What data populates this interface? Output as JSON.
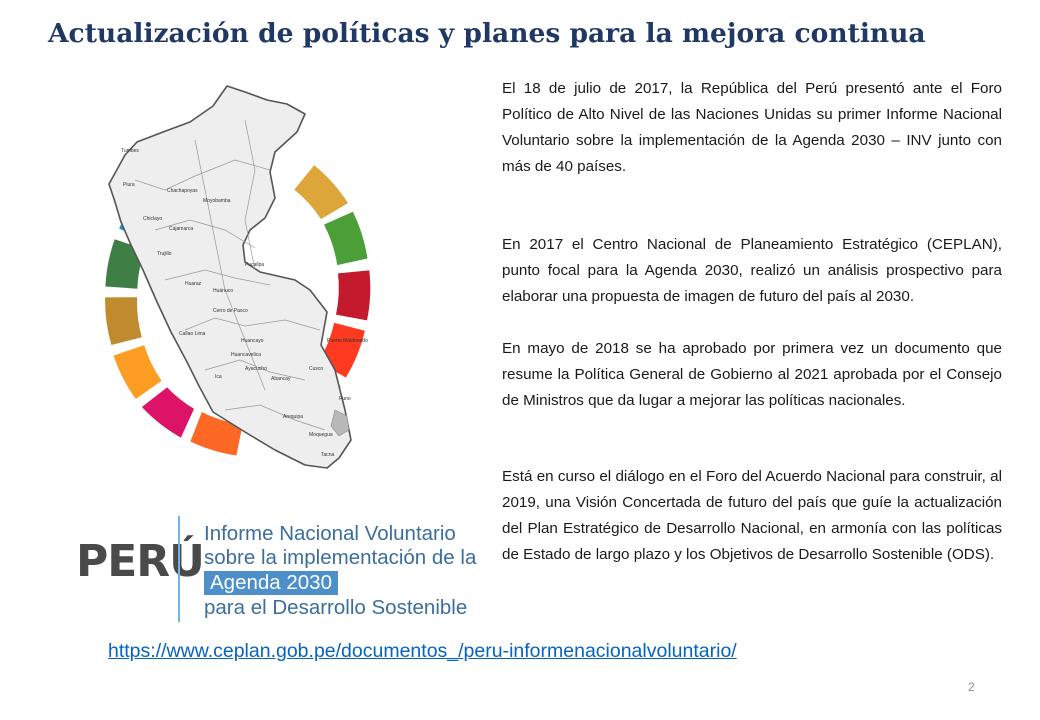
{
  "slide": {
    "title": "Actualización de políticas y planes para la mejora continua",
    "page_number": "2"
  },
  "paragraphs": [
    "El 18 de julio de 2017, la República del Perú presentó ante el Foro Político de Alto Nivel de las Naciones Unidas su primer Informe Nacional Voluntario sobre la implementación de la Agenda 2030 – INV junto con más de 40 países.",
    "En 2017 el Centro Nacional de Planeamiento Estratégico (CEPLAN), punto focal para la Agenda 2030, realizó un análisis prospectivo para elaborar una propuesta de imagen de futuro del país al 2030.",
    "En mayo de 2018 se ha aprobado por primera vez un documento que resume la Política General de Gobierno al 2021 aprobada por el Consejo de Ministros que da lugar a mejorar las políticas nacionales.",
    "Está en curso el diálogo en el Foro del Acuerdo Nacional para construir, al 2019, una Visión Concertada de futuro del país que guíe la actualización del Plan Estratégico de Desarrollo Nacional, en armonía con las políticas de Estado de largo plazo y los Objetivos de Desarrollo Sostenible (ODS)."
  ],
  "map_cities": [
    "Tumbes",
    "Piura",
    "Chachapoyas",
    "Moyobamba",
    "Chiclayo",
    "Cajamarca",
    "Trujillo",
    "Huaraz",
    "Pucallpa",
    "Huánuco",
    "Cerro de Pasco",
    "Callao Lima",
    "Huancayo",
    "Huancavelica",
    "Ayacucho",
    "Ica",
    "Abancay",
    "Cusco",
    "Puerto Maldonado",
    "Arequipa",
    "Moquegua",
    "Tacna",
    "Puno"
  ],
  "brand": {
    "country": "PERÚ",
    "lines": [
      "Informe Nacional Voluntario",
      "sobre la implementación de la",
      "Agenda 2030",
      "para el Desarrollo Sostenible"
    ]
  },
  "colors": {
    "title": "#1f3864",
    "link": "#0563c1",
    "sdg_ring": [
      "#e5243b",
      "#dda63a",
      "#4c9f38",
      "#c5192d",
      "#ff3a21",
      "#26bde2",
      "#fcc30b",
      "#a21942",
      "#fd6925",
      "#dd1367",
      "#fd9d24",
      "#bf8b2e",
      "#3f7e44",
      "#0a97d9"
    ]
  },
  "source": {
    "url": "https://www.ceplan.gob.pe/documentos_/peru-informenacionalvoluntario/"
  }
}
